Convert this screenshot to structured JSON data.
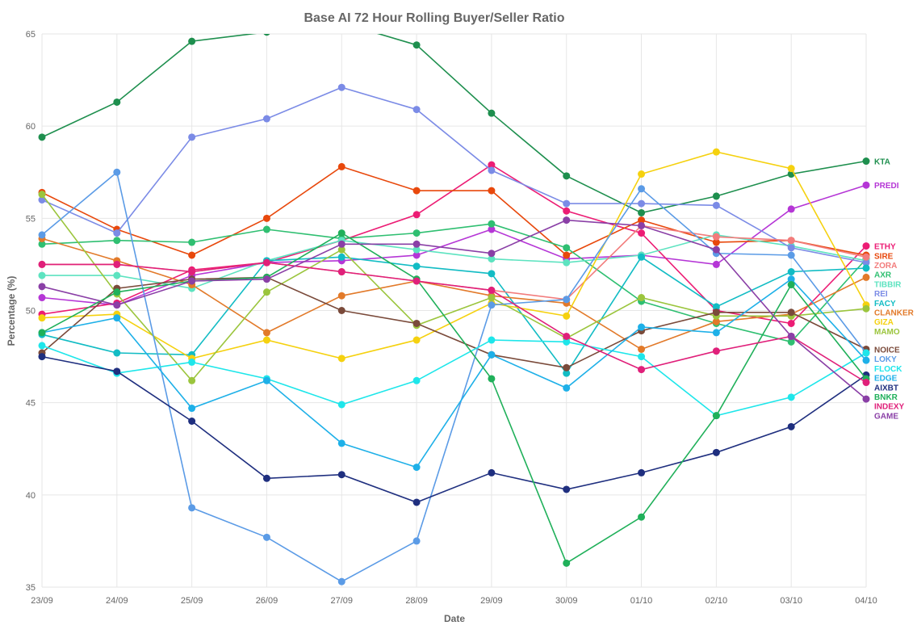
{
  "chart_data": {
    "type": "line",
    "title": "Base AI 72 Hour Rolling Buyer/Seller Ratio",
    "xlabel": "Date",
    "ylabel": "Percentage (%)",
    "ylim": [
      35,
      65
    ],
    "yticks": [
      35,
      40,
      45,
      50,
      55,
      60,
      65
    ],
    "grid": true,
    "legend_position": "right",
    "categories": [
      "23/09",
      "24/09",
      "25/09",
      "26/09",
      "27/09",
      "28/09",
      "29/09",
      "30/09",
      "01/10",
      "02/10",
      "03/10",
      "04/10"
    ],
    "series": [
      {
        "name": "KTA",
        "color": "#1e8f4e",
        "values": [
          59.4,
          61.3,
          64.6,
          65.1,
          65.6,
          64.4,
          60.7,
          57.3,
          55.3,
          56.2,
          57.4,
          58.1
        ]
      },
      {
        "name": "PREDI",
        "color": "#b536d6",
        "values": [
          50.7,
          50.3,
          51.9,
          52.6,
          52.7,
          53.0,
          54.4,
          52.8,
          53.0,
          52.5,
          55.5,
          56.8
        ]
      },
      {
        "name": "ETHY",
        "color": "#ec1c74",
        "values": [
          49.8,
          50.4,
          52.2,
          52.6,
          53.8,
          55.2,
          57.9,
          55.4,
          54.2,
          50.0,
          49.3,
          53.5
        ]
      },
      {
        "name": "SIRE",
        "color": "#e8480c",
        "values": [
          56.4,
          54.4,
          53.0,
          55.0,
          57.8,
          56.5,
          56.5,
          53.0,
          54.9,
          53.7,
          53.8,
          53.0
        ]
      },
      {
        "name": "AXR",
        "color": "#2fbf71",
        "values": [
          53.6,
          53.8,
          53.7,
          54.4,
          53.9,
          54.2,
          54.7,
          53.4,
          50.5,
          49.3,
          48.3,
          52.8
        ]
      },
      {
        "name": "TIBBIR",
        "color": "#5de3c0",
        "values": [
          51.9,
          51.9,
          51.2,
          52.7,
          53.8,
          53.3,
          52.8,
          52.6,
          53.0,
          54.1,
          53.5,
          52.7
        ]
      },
      {
        "name": "REI",
        "color": "#7b8be6",
        "values": [
          56.0,
          54.2,
          59.4,
          60.4,
          62.1,
          60.9,
          57.6,
          55.8,
          55.8,
          55.7,
          53.4,
          52.6
        ]
      },
      {
        "name": "FACY",
        "color": "#12bcc4",
        "values": [
          48.7,
          47.7,
          47.6,
          52.7,
          52.9,
          52.4,
          52.0,
          46.6,
          52.9,
          50.2,
          52.1,
          52.3
        ]
      },
      {
        "name": "CLANKER",
        "color": "#e27a2a",
        "values": [
          53.9,
          52.7,
          51.4,
          48.8,
          50.8,
          51.6,
          50.8,
          50.4,
          47.9,
          49.4,
          49.8,
          51.8
        ]
      },
      {
        "name": "ZORA",
        "color": "#f27c7c",
        "values": [
          52.5,
          52.5,
          52.1,
          52.6,
          52.1,
          51.6,
          51.1,
          50.6,
          54.6,
          54.0,
          53.8,
          52.9
        ]
      },
      {
        "name": "GIZA",
        "color": "#f5d10f",
        "values": [
          49.6,
          49.8,
          47.4,
          48.4,
          47.4,
          48.4,
          50.4,
          49.7,
          57.4,
          58.6,
          57.7,
          50.3
        ]
      },
      {
        "name": "MAMO",
        "color": "#9bc53d",
        "values": [
          56.3,
          50.9,
          46.2,
          51.0,
          53.3,
          49.2,
          50.7,
          48.5,
          50.7,
          49.7,
          49.7,
          50.1
        ]
      },
      {
        "name": "NOICE",
        "color": "#7a4a3a",
        "values": [
          47.7,
          51.2,
          51.7,
          51.8,
          50.0,
          49.3,
          47.6,
          46.9,
          48.9,
          49.9,
          49.9,
          47.9
        ]
      },
      {
        "name": "LOKY",
        "color": "#5b9be6",
        "values": [
          54.1,
          57.5,
          39.3,
          37.7,
          35.3,
          37.5,
          50.3,
          50.6,
          56.6,
          53.1,
          53.0,
          47.7
        ]
      },
      {
        "name": "FLOCK",
        "color": "#1ee6ea",
        "values": [
          48.1,
          46.6,
          47.2,
          46.3,
          44.9,
          46.2,
          48.4,
          48.3,
          47.5,
          44.3,
          45.3,
          47.7
        ]
      },
      {
        "name": "EDGE",
        "color": "#1eb0e8",
        "values": [
          48.8,
          49.6,
          44.7,
          46.2,
          42.8,
          41.5,
          47.6,
          45.8,
          49.1,
          48.8,
          51.7,
          47.3
        ]
      },
      {
        "name": "AIXBT",
        "color": "#1f2f7f",
        "values": [
          47.5,
          46.7,
          44.0,
          40.9,
          41.1,
          39.6,
          41.2,
          40.3,
          41.2,
          42.3,
          43.7,
          46.5
        ]
      },
      {
        "name": "BNKR",
        "color": "#20b05a",
        "values": [
          48.8,
          51.0,
          51.6,
          51.8,
          54.2,
          51.7,
          46.3,
          36.3,
          38.8,
          44.3,
          51.4,
          46.3
        ]
      },
      {
        "name": "INDEXY",
        "color": "#e0207a",
        "values": [
          52.5,
          52.5,
          52.1,
          52.6,
          52.1,
          51.6,
          51.1,
          48.6,
          46.8,
          47.8,
          48.6,
          46.1
        ]
      },
      {
        "name": "GAME",
        "color": "#8a3fa6",
        "values": [
          51.3,
          50.3,
          51.6,
          51.7,
          53.6,
          53.6,
          53.1,
          54.9,
          54.6,
          53.3,
          48.6,
          45.2
        ]
      }
    ]
  }
}
